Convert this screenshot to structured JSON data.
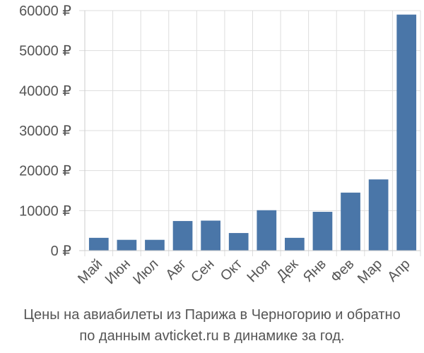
{
  "chart_data": {
    "type": "bar",
    "categories": [
      "Май",
      "Июн",
      "Июл",
      "Авг",
      "Сен",
      "Окт",
      "Ноя",
      "Дек",
      "Янв",
      "Фев",
      "Мар",
      "Апр"
    ],
    "values": [
      3200,
      2700,
      2700,
      7400,
      7500,
      4400,
      10100,
      3200,
      9700,
      14500,
      17800,
      59000
    ],
    "ylim": [
      0,
      60000
    ],
    "yticks": [
      0,
      10000,
      20000,
      30000,
      40000,
      50000,
      60000
    ],
    "ytick_labels": [
      "0 ₽",
      "10000 ₽",
      "20000 ₽",
      "30000 ₽",
      "40000 ₽",
      "50000 ₽",
      "60000 ₽"
    ],
    "bar_color": "#4a76a8",
    "grid": true,
    "xlabel": "",
    "ylabel": ""
  },
  "caption": {
    "line1": "Цены на авиабилеты из Парижа в Черногорию и обратно",
    "line2": "по данным avticket.ru в динамике за год."
  }
}
